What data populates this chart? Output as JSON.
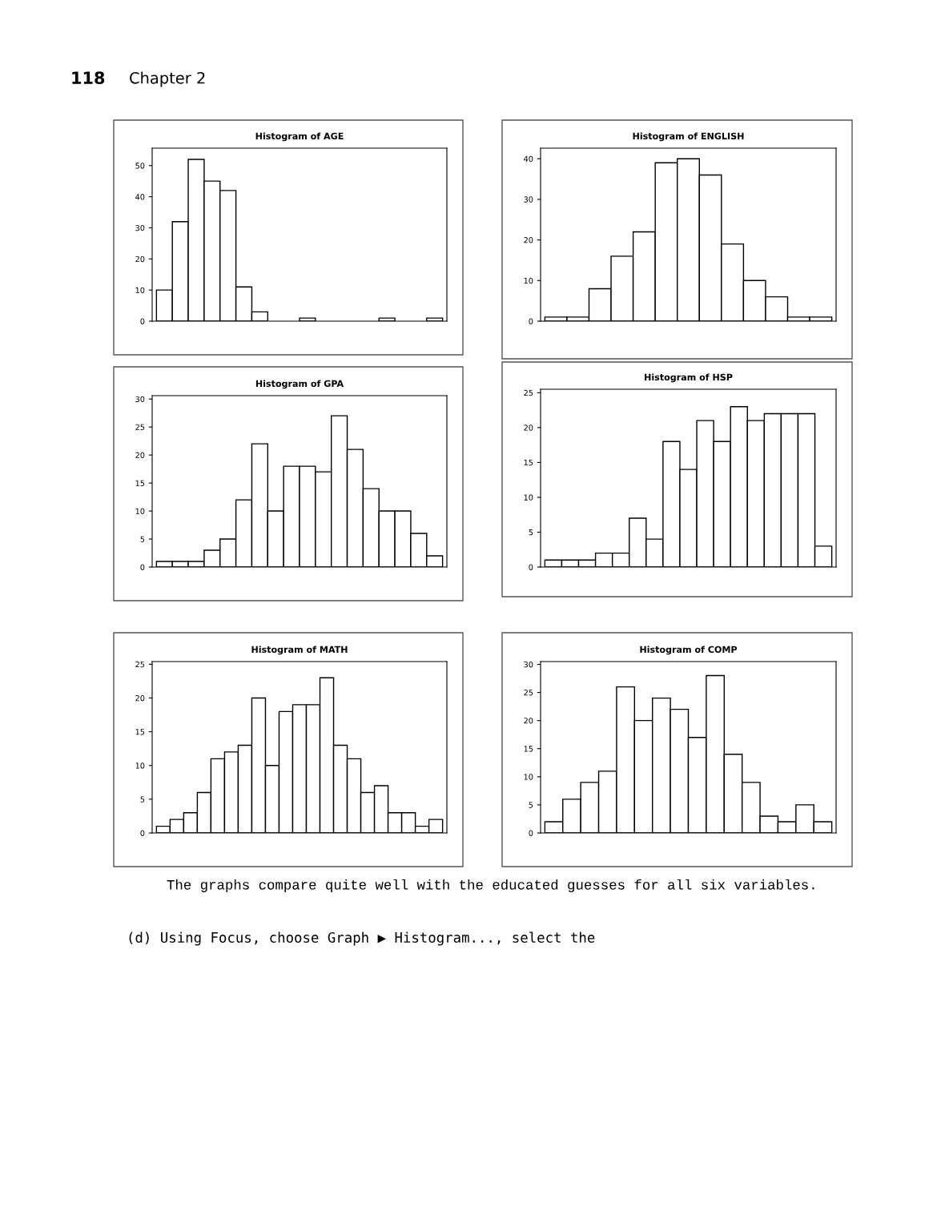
{
  "chart_data": [
    {
      "type": "bar",
      "title": "Histogram of AGE",
      "categories": [
        null,
        null,
        null,
        null,
        null,
        null,
        null,
        null,
        null,
        null,
        null,
        null,
        null,
        null,
        null,
        null,
        null,
        null
      ],
      "values": [
        10,
        32,
        52,
        45,
        42,
        11,
        3,
        0,
        0,
        1,
        0,
        0,
        0,
        0,
        1,
        0,
        0,
        1
      ],
      "color": "#ffffff",
      "ylim": [
        0,
        55.6
      ],
      "yticks": [
        0,
        10,
        20,
        30,
        40,
        50
      ],
      "tick_labels": "y",
      "grid": false,
      "legend": false,
      "annotations": [
        "118",
        "Chapter 2"
      ]
    },
    {
      "type": "bar",
      "title": "Histogram of ENGLISH",
      "categories": [
        null,
        null,
        null,
        null,
        null,
        null,
        null,
        null,
        null,
        null,
        null,
        null,
        null
      ],
      "values": [
        1,
        1,
        8,
        16,
        22,
        39,
        40,
        36,
        19,
        10,
        6,
        1,
        1
      ],
      "color": "#ffffff",
      "ylim": [
        0,
        42.6
      ],
      "yticks": [
        0,
        10,
        20,
        30,
        40
      ],
      "tick_labels": "y",
      "grid": false,
      "legend": false
    },
    {
      "type": "bar",
      "title": "Histogram of GPA",
      "categories": [
        null,
        null,
        null,
        null,
        null,
        null,
        null,
        null,
        null,
        null,
        null,
        null,
        null,
        null,
        null,
        null,
        null,
        null
      ],
      "values": [
        1,
        1,
        1,
        3,
        5,
        12,
        22,
        10,
        18,
        18,
        17,
        27,
        21,
        14,
        10,
        10,
        6,
        2
      ],
      "color": "#ffffff",
      "ylim": [
        0,
        30.6
      ],
      "yticks": [
        0,
        5,
        10,
        15,
        20,
        25,
        30
      ],
      "tick_labels": "y",
      "grid": false,
      "legend": false
    },
    {
      "type": "bar",
      "title": "Histogram of HSP",
      "categories": [
        null,
        null,
        null,
        null,
        null,
        null,
        null,
        null,
        null,
        null,
        null,
        null,
        null,
        null,
        null,
        null,
        null
      ],
      "values": [
        1,
        1,
        1,
        2,
        2,
        7,
        4,
        18,
        14,
        21,
        18,
        23,
        21,
        22,
        22,
        22,
        3
      ],
      "color": "#ffffff",
      "ylim": [
        0,
        25.5
      ],
      "yticks": [
        0,
        5,
        10,
        15,
        20,
        25
      ],
      "tick_labels": "y",
      "grid": false,
      "legend": false
    },
    {
      "type": "bar",
      "title": "Histogram of MATH",
      "categories": [
        null,
        null,
        null,
        null,
        null,
        null,
        null,
        null,
        null,
        null,
        null,
        null,
        null,
        null,
        null,
        null,
        null,
        null,
        null,
        null,
        null
      ],
      "values": [
        1,
        2,
        3,
        6,
        11,
        12,
        13,
        20,
        10,
        18,
        19,
        19,
        23,
        13,
        11,
        6,
        7,
        3,
        3,
        1,
        2
      ],
      "color": "#ffffff",
      "ylim": [
        0,
        25.4
      ],
      "yticks": [
        0,
        5,
        10,
        15,
        20,
        25
      ],
      "tick_labels": "y",
      "grid": false,
      "legend": false
    },
    {
      "type": "bar",
      "title": "Histogram of COMP",
      "categories": [
        null,
        null,
        null,
        null,
        null,
        null,
        null,
        null,
        null,
        null,
        null,
        null,
        null,
        null,
        null,
        null
      ],
      "values": [
        2,
        6,
        9,
        11,
        26,
        20,
        24,
        22,
        17,
        28,
        14,
        9,
        3,
        2,
        5,
        2
      ],
      "color": "#ffffff",
      "ylim": [
        0,
        30.5
      ],
      "yticks": [
        0,
        5,
        10,
        15,
        20,
        25,
        30
      ],
      "tick_labels": "y",
      "grid": false,
      "legend": false,
      "annotations": [
        "The graphs compare quite well with the educated guesses for all six variables.",
        "(d) Using Focus, choose Graph ▶ Histogram..., select the"
      ]
    }
  ]
}
